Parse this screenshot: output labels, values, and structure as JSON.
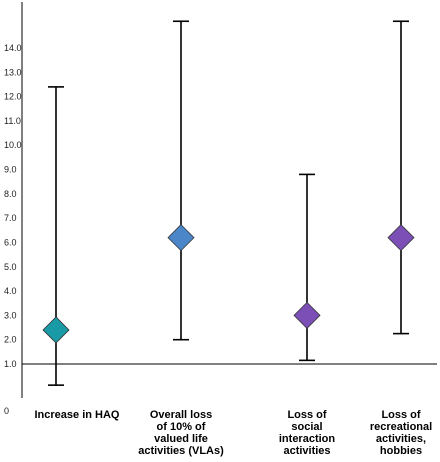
{
  "chart_data": {
    "type": "scatter",
    "subtype": "point-with-error-bars",
    "title": "",
    "xlabel": "",
    "ylabel": "",
    "y_tick_labels": [
      "0",
      "1.0",
      "2.0",
      "3.0",
      "4.0",
      "5.0",
      "6.0",
      "7.0",
      "8.0",
      "9.0",
      "10.0",
      "11.0",
      "12.0",
      "13.0",
      "14.0"
    ],
    "reference_line": 1.0,
    "grid": false,
    "legend": "none",
    "marker": "diamond",
    "categories": [
      {
        "label_lines": [
          "Increase in HAQ"
        ],
        "value": 2.4,
        "lower": 0.55,
        "upper": 12.4,
        "color": "#1a9aa6"
      },
      {
        "label_lines": [
          "Overall loss",
          "of 10% of",
          "valued life",
          "activities (VLAs)"
        ],
        "value": 6.2,
        "lower": 2.0,
        "upper": 15.1,
        "color": "#4a86c8"
      },
      {
        "label_lines": [
          "Loss of",
          "social",
          "interaction",
          "activities"
        ],
        "value": 3.0,
        "lower": 1.15,
        "upper": 8.8,
        "color": "#7b4fb5"
      },
      {
        "label_lines": [
          "Loss of",
          "recreational",
          "activities,",
          "hobbies"
        ],
        "value": 6.2,
        "lower": 2.25,
        "upper": 15.1,
        "color": "#7b4fb5"
      }
    ]
  }
}
